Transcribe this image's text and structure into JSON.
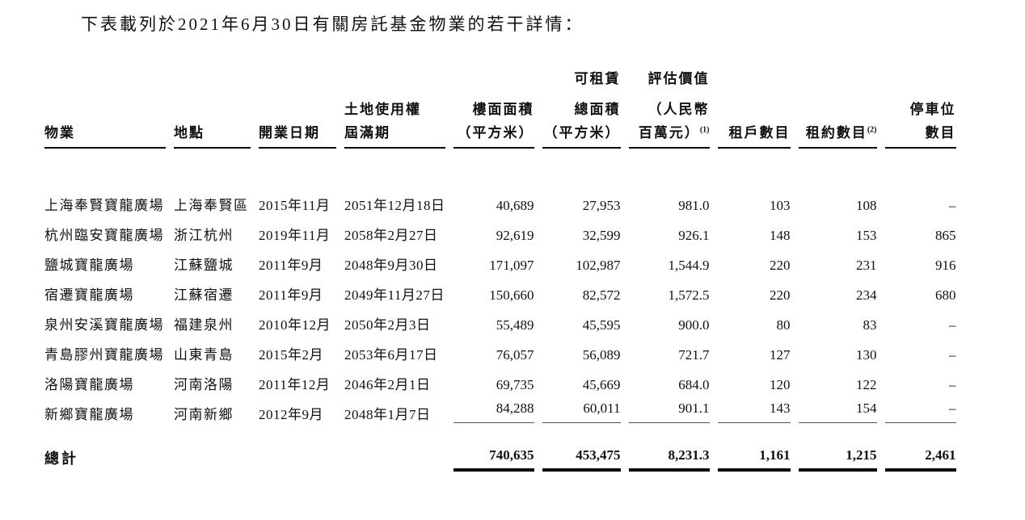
{
  "title": "下表載列於2021年6月30日有關房託基金物業的若干詳情：",
  "table": {
    "header": {
      "columns": [
        {
          "lines": [
            "",
            "",
            "物業"
          ],
          "sup": "",
          "align": "left"
        },
        {
          "lines": [
            "",
            "",
            "地點"
          ],
          "sup": "",
          "align": "left"
        },
        {
          "lines": [
            "",
            "",
            "開業日期"
          ],
          "sup": "",
          "align": "left"
        },
        {
          "lines": [
            "",
            "土地使用權",
            "屆滿期"
          ],
          "sup": "",
          "align": "left"
        },
        {
          "lines": [
            "",
            "樓面面積",
            "（平方米）"
          ],
          "sup": "",
          "align": "right"
        },
        {
          "lines": [
            "可租賃",
            "總面積",
            "（平方米）"
          ],
          "sup": "",
          "align": "right"
        },
        {
          "lines": [
            "評估價值",
            "（人民幣",
            "百萬元）"
          ],
          "sup": "(1)",
          "align": "right"
        },
        {
          "lines": [
            "",
            "",
            "租戶數目"
          ],
          "sup": "",
          "align": "right"
        },
        {
          "lines": [
            "",
            "",
            "租約數目"
          ],
          "sup": "(2)",
          "align": "right"
        },
        {
          "lines": [
            "",
            "停車位",
            "數目"
          ],
          "sup": "",
          "align": "right"
        }
      ]
    },
    "rows": [
      [
        "上海奉賢寶龍廣場",
        "上海奉賢區",
        "2015年11月",
        "2051年12月18日",
        "40,689",
        "27,953",
        "981.0",
        "103",
        "108",
        "–"
      ],
      [
        "杭州臨安寶龍廣場",
        "浙江杭州",
        "2019年11月",
        "2058年2月27日",
        "92,619",
        "32,599",
        "926.1",
        "148",
        "153",
        "865"
      ],
      [
        "鹽城寶龍廣場",
        "江蘇鹽城",
        "2011年9月",
        "2048年9月30日",
        "171,097",
        "102,987",
        "1,544.9",
        "220",
        "231",
        "916"
      ],
      [
        "宿遷寶龍廣場",
        "江蘇宿遷",
        "2011年9月",
        "2049年11月27日",
        "150,660",
        "82,572",
        "1,572.5",
        "220",
        "234",
        "680"
      ],
      [
        "泉州安溪寶龍廣場",
        "福建泉州",
        "2010年12月",
        "2050年2月3日",
        "55,489",
        "45,595",
        "900.0",
        "80",
        "83",
        "–"
      ],
      [
        "青島膠州寶龍廣場",
        "山東青島",
        "2015年2月",
        "2053年6月17日",
        "76,057",
        "56,089",
        "721.7",
        "127",
        "130",
        "–"
      ],
      [
        "洛陽寶龍廣場",
        "河南洛陽",
        "2011年12月",
        "2046年2月1日",
        "69,735",
        "45,669",
        "684.0",
        "120",
        "122",
        "–"
      ],
      [
        "新鄉寶龍廣場",
        "河南新鄉",
        "2012年9月",
        "2048年1月7日",
        "84,288",
        "60,011",
        "901.1",
        "143",
        "154",
        "–"
      ]
    ],
    "total": {
      "label": "總計",
      "values": [
        "740,635",
        "453,475",
        "8,231.3",
        "1,161",
        "1,215",
        "2,461"
      ]
    }
  }
}
